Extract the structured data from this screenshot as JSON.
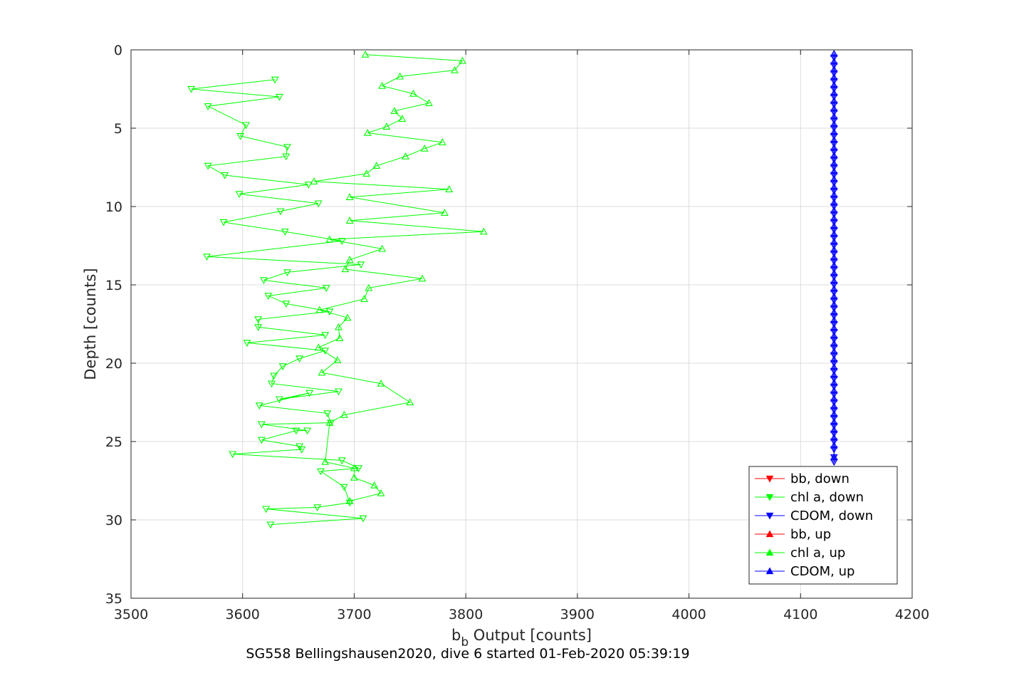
{
  "chart_data": {
    "type": "line",
    "xlabel_main": "b",
    "xlabel_sub": "b",
    "xlabel_rest": " Output [counts]",
    "ylabel": "Depth [counts]",
    "caption": "SG558 Bellingshausen2020, dive 6 started 01-Feb-2020 05:39:19",
    "xlim": [
      3500,
      4200
    ],
    "ylim": [
      0,
      35
    ],
    "y_reversed": true,
    "xticks": [
      "3500",
      "3600",
      "3700",
      "3800",
      "3900",
      "4000",
      "4100",
      "4200"
    ],
    "yticks": [
      "0",
      "5",
      "10",
      "15",
      "20",
      "25",
      "30",
      "35"
    ],
    "grid": true,
    "legend_position": "bottom-right",
    "series": [
      {
        "name": "bb, down",
        "color": "#ff0000",
        "marker": "down-triangle",
        "x": [],
        "y": []
      },
      {
        "name": "chl a, down",
        "color": "#00ff00",
        "marker": "down-triangle",
        "x": [
          3629,
          3554,
          3633,
          3569,
          3603,
          3598,
          3640,
          3639,
          3569,
          3584,
          3659,
          3597,
          3668,
          3634,
          3583,
          3638,
          3689,
          3568,
          3706,
          3640,
          3619,
          3675,
          3623,
          3639,
          3678,
          3614,
          3614,
          3674,
          3604,
          3674,
          3651,
          3636,
          3628,
          3626,
          3686,
          3633,
          3660,
          3615,
          3676,
          3679,
          3617,
          3658,
          3648,
          3617,
          3651,
          3653,
          3591,
          3689,
          3704,
          3670,
          3691,
          3696,
          3667,
          3621,
          3708,
          3625
        ],
        "y": [
          1.9,
          2.5,
          3.0,
          3.6,
          4.8,
          5.5,
          6.2,
          6.8,
          7.4,
          8.0,
          8.6,
          9.2,
          9.8,
          10.3,
          11.0,
          11.6,
          12.2,
          13.2,
          13.7,
          14.2,
          14.7,
          15.2,
          15.7,
          16.2,
          16.7,
          17.2,
          17.7,
          18.2,
          18.7,
          19.2,
          19.7,
          20.2,
          20.8,
          21.3,
          21.8,
          22.3,
          21.9,
          22.7,
          23.2,
          23.8,
          23.9,
          24.3,
          24.3,
          24.9,
          25.3,
          25.5,
          25.8,
          26.2,
          26.7,
          26.9,
          27.9,
          28.9,
          29.2,
          29.3,
          29.9,
          30.3
        ]
      },
      {
        "name": "CDOM, down",
        "color": "#0000ff",
        "marker": "down-triangle",
        "x": [
          4130,
          4130,
          4130,
          4130,
          4130,
          4130,
          4130,
          4130,
          4130,
          4130,
          4130,
          4130,
          4130,
          4130,
          4130,
          4130,
          4130,
          4130,
          4130,
          4130,
          4130,
          4130,
          4130,
          4130,
          4130,
          4130,
          4130,
          4130,
          4130,
          4130,
          4130,
          4130,
          4130,
          4130,
          4130,
          4130,
          4130,
          4130,
          4130,
          4130,
          4130,
          4130,
          4130,
          4130,
          4130,
          4130,
          4130,
          4130,
          4130,
          4130,
          4130,
          4130,
          4130
        ],
        "y": [
          0.5,
          1.0,
          1.5,
          2.0,
          2.5,
          3.0,
          3.5,
          4.0,
          4.5,
          5.0,
          5.5,
          6.0,
          6.5,
          7.0,
          7.5,
          8.0,
          8.5,
          9.0,
          9.5,
          10.0,
          10.5,
          11.0,
          11.5,
          12.0,
          12.5,
          13.0,
          13.5,
          14.0,
          14.5,
          15.0,
          15.5,
          16.0,
          16.5,
          17.0,
          17.5,
          18.0,
          18.5,
          19.0,
          19.5,
          20.0,
          20.5,
          21.0,
          21.5,
          22.0,
          22.5,
          23.0,
          23.5,
          24.0,
          24.5,
          25.0,
          25.5,
          26.0,
          26.3
        ]
      },
      {
        "name": "bb, up",
        "color": "#ff0000",
        "marker": "up-triangle",
        "x": [],
        "y": []
      },
      {
        "name": "chl a, up",
        "color": "#00ff00",
        "marker": "up-triangle",
        "x": [
          3710,
          3797,
          3790,
          3741,
          3725,
          3753,
          3767,
          3736,
          3743,
          3729,
          3712,
          3779,
          3763,
          3746,
          3720,
          3711,
          3664,
          3785,
          3696,
          3781,
          3696,
          3816,
          3678,
          3725,
          3696,
          3692,
          3761,
          3713,
          3709,
          3669,
          3694,
          3686,
          3687,
          3668,
          3685,
          3671,
          3724,
          3750,
          3691,
          3678,
          3674,
          3700,
          3700,
          3718,
          3724,
          3696
        ],
        "y": [
          0.3,
          0.7,
          1.3,
          1.7,
          2.3,
          2.8,
          3.4,
          3.9,
          4.4,
          4.9,
          5.3,
          5.9,
          6.3,
          6.8,
          7.4,
          7.9,
          8.4,
          8.9,
          9.4,
          10.4,
          10.9,
          11.6,
          12.1,
          12.7,
          13.4,
          14.0,
          14.6,
          15.2,
          15.9,
          16.6,
          17.1,
          17.7,
          18.4,
          19.0,
          19.8,
          20.6,
          21.3,
          22.5,
          23.3,
          23.8,
          26.3,
          26.7,
          27.3,
          27.8,
          28.3,
          28.8
        ],
        "extra_note": ""
      },
      {
        "name": "CDOM, up",
        "color": "#0000ff",
        "marker": "up-triangle",
        "x": [
          4130,
          4130,
          4130,
          4130,
          4130,
          4130,
          4130,
          4130,
          4130,
          4130,
          4130,
          4130,
          4130,
          4130,
          4130,
          4130,
          4130,
          4130,
          4130,
          4130,
          4130,
          4130,
          4130,
          4130,
          4130,
          4130,
          4130,
          4130,
          4130,
          4130,
          4130,
          4130,
          4130,
          4130,
          4130,
          4130,
          4130,
          4130,
          4130,
          4130,
          4130,
          4130,
          4130,
          4130,
          4130,
          4130,
          4130,
          4130,
          4130,
          4130,
          4130,
          4130
        ],
        "y": [
          0.25,
          0.75,
          1.25,
          1.75,
          2.25,
          2.75,
          3.25,
          3.75,
          4.25,
          4.75,
          5.25,
          5.75,
          6.25,
          6.75,
          7.25,
          7.75,
          8.25,
          8.75,
          9.25,
          9.75,
          10.25,
          10.75,
          11.25,
          11.75,
          12.25,
          12.75,
          13.25,
          13.75,
          14.25,
          14.75,
          15.25,
          15.75,
          16.25,
          16.75,
          17.25,
          17.75,
          18.25,
          18.75,
          19.25,
          19.75,
          20.25,
          20.75,
          21.25,
          21.75,
          22.25,
          22.75,
          23.25,
          23.75,
          24.25,
          24.75,
          25.25,
          26.0
        ]
      }
    ]
  }
}
